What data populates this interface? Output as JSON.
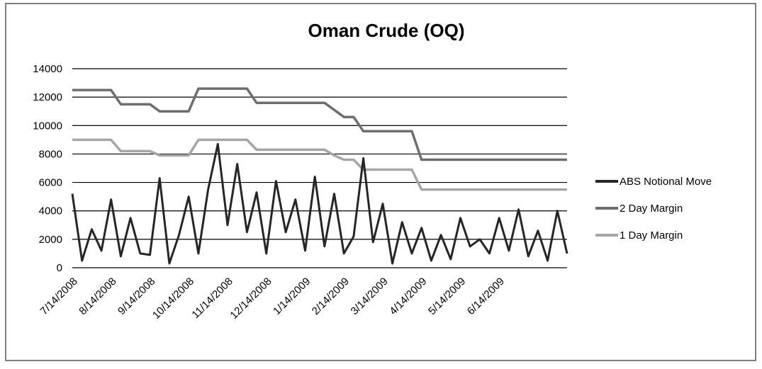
{
  "chart_data": {
    "type": "line",
    "title": "Oman Crude (OQ)",
    "categories": [
      "7/14/2008",
      null,
      null,
      null,
      "8/14/2008",
      null,
      null,
      null,
      "9/14/2008",
      null,
      null,
      null,
      "10/14/2008",
      null,
      null,
      null,
      "11/14/2008",
      null,
      null,
      null,
      "12/14/2008",
      null,
      null,
      null,
      "1/14/2009",
      null,
      null,
      null,
      "2/14/2009",
      null,
      null,
      null,
      "3/14/2009",
      null,
      null,
      null,
      "4/14/2009",
      null,
      null,
      null,
      "5/14/2009",
      null,
      null,
      null,
      "6/14/2009",
      null,
      null,
      null,
      null,
      null,
      null,
      null
    ],
    "series": [
      {
        "name": "ABS Notional Move",
        "color": "#262626",
        "values": [
          5200,
          500,
          2700,
          1200,
          4800,
          800,
          3500,
          1000,
          900,
          6300,
          300,
          2300,
          5000,
          1000,
          5500,
          8700,
          3000,
          7300,
          2500,
          5300,
          1000,
          6100,
          2500,
          4800,
          1200,
          6400,
          1500,
          5200,
          1000,
          2200,
          7700,
          1800,
          4500,
          300,
          3200,
          1000,
          2800,
          500,
          2300,
          600,
          3500,
          1500,
          2000,
          1000,
          3500,
          1200,
          4100,
          800,
          2600,
          500,
          4000,
          1000
        ]
      },
      {
        "name": "2 Day Margin",
        "color": "#6e6e6e",
        "values": [
          12500,
          12500,
          12500,
          12500,
          12500,
          11500,
          11500,
          11500,
          11500,
          11000,
          11000,
          11000,
          11000,
          12600,
          12600,
          12600,
          12600,
          12600,
          12600,
          11600,
          11600,
          11600,
          11600,
          11600,
          11600,
          11600,
          11600,
          11100,
          10600,
          10600,
          9600,
          9600,
          9600,
          9600,
          9600,
          9600,
          7600,
          7600,
          7600,
          7600,
          7600,
          7600,
          7600,
          7600,
          7600,
          7600,
          7600,
          7600,
          7600,
          7600,
          7600,
          7600
        ]
      },
      {
        "name": "1 Day Margin",
        "color": "#a6a6a6",
        "values": [
          9000,
          9000,
          9000,
          9000,
          9000,
          8200,
          8200,
          8200,
          8200,
          7900,
          7900,
          7900,
          7900,
          9000,
          9000,
          9000,
          9000,
          9000,
          9000,
          8300,
          8300,
          8300,
          8300,
          8300,
          8300,
          8300,
          8300,
          7900,
          7600,
          7600,
          6900,
          6900,
          6900,
          6900,
          6900,
          6900,
          5500,
          5500,
          5500,
          5500,
          5500,
          5500,
          5500,
          5500,
          5500,
          5500,
          5500,
          5500,
          5500,
          5500,
          5500,
          5500
        ]
      }
    ],
    "ylim": [
      0,
      14000
    ],
    "yticks": [
      0,
      2000,
      4000,
      6000,
      8000,
      10000,
      12000,
      14000
    ],
    "grid": true,
    "legend": "right"
  }
}
